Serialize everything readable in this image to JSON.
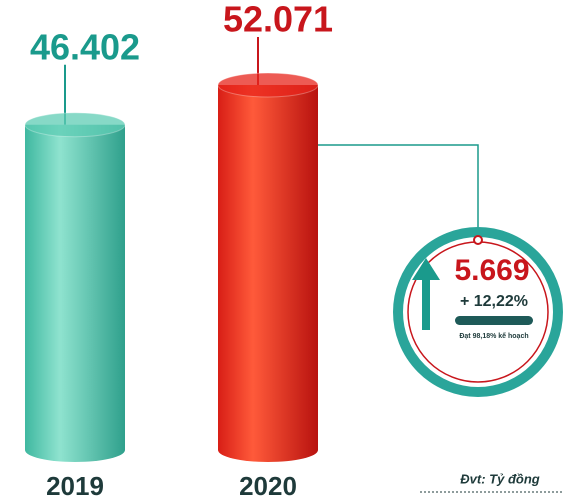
{
  "chart_data": {
    "type": "cylinder",
    "categories": [
      "2019",
      "2020"
    ],
    "values": [
      46402,
      52071
    ],
    "value_labels": [
      "46.402",
      "52.071"
    ],
    "colors": [
      "#5fcdb5",
      "#e8251c"
    ],
    "label_colors": [
      "#1a9a8c",
      "#c8161c"
    ],
    "difference_label": "5.669",
    "growth_label": "+ 12,22%",
    "note": "Đạt 98,18% kế hoạch",
    "unit": "Đvt: Tỷ đồng"
  }
}
